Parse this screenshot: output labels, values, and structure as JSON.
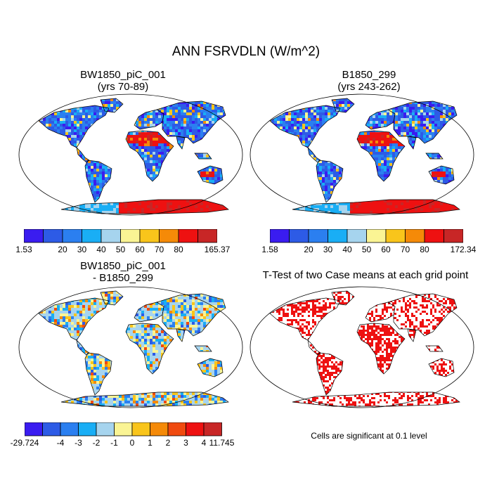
{
  "title": "ANN FSRVDLN (W/m^2)",
  "panels": [
    {
      "title_line1": "BW1850_piC_001",
      "title_line2": "(yrs 70-89)"
    },
    {
      "title_line1": "B1850_299",
      "title_line2": "(yrs 243-262)"
    },
    {
      "title_line1": "BW1850_piC_001",
      "title_line2": "- B1850_299"
    },
    {
      "title_line1": "T-Test of two Case means at each grid point"
    }
  ],
  "colorbars": [
    {
      "colors": [
        "#3a1cf0",
        "#2d5be6",
        "#2b7ff0",
        "#19aef5",
        "#a6d4ee",
        "#faf494",
        "#f9c51b",
        "#f58a08",
        "#ee1111",
        "#c82626"
      ],
      "labels": [
        "1.53",
        "20",
        "30",
        "40",
        "50",
        "60",
        "70",
        "80",
        "165.37"
      ]
    },
    {
      "colors": [
        "#3a1cf0",
        "#2d5be6",
        "#2b7ff0",
        "#19aef5",
        "#a6d4ee",
        "#faf494",
        "#f9c51b",
        "#f58a08",
        "#ee1111",
        "#c82626"
      ],
      "labels": [
        "1.58",
        "20",
        "30",
        "40",
        "50",
        "60",
        "70",
        "80",
        "172.34"
      ]
    },
    {
      "colors": [
        "#3a1cf0",
        "#2d5be6",
        "#2b7ff0",
        "#19aef5",
        "#a6d4ee",
        "#faf494",
        "#f9c51b",
        "#f58a08",
        "#f04a0f",
        "#ee1111",
        "#c82626"
      ],
      "labels": [
        "-29.724",
        "-4",
        "-3",
        "-2",
        "-1",
        "0",
        "1",
        "2",
        "3",
        "4",
        "11.745"
      ]
    }
  ],
  "significance_note": "Cells are significant at 0.1 level",
  "colors": {
    "significant": "#ee1111",
    "ocean": "#ffffff",
    "coast": "#000000"
  }
}
